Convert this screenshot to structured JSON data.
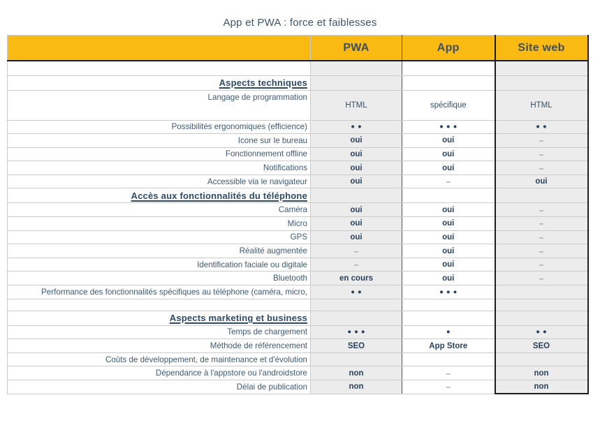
{
  "title": "App et PWA : force et faiblesses",
  "colors": {
    "accent_yellow": "#FBBA12",
    "header_text": "#3F4F5B",
    "label_text": "#3E5A73",
    "value_text": "#29425A",
    "dash_text": "#9CA1A8",
    "grid_light": "#CBCBCB",
    "grid_dark": "#4F4F4F",
    "emphasis_border": "#1D1D1D",
    "cell_gray": "#ECECEC"
  },
  "table": {
    "columns": [
      "PWA",
      "App",
      "Site web"
    ],
    "rows": [
      {
        "kind": "empty",
        "label": "",
        "cells": [
          "",
          "",
          ""
        ]
      },
      {
        "kind": "section",
        "label": "Aspects techniques",
        "cells": [
          "",
          "",
          ""
        ]
      },
      {
        "kind": "tall",
        "label": "Langage de programmation",
        "cells": [
          "HTML",
          "spécifique",
          "HTML"
        ]
      },
      {
        "kind": "data",
        "label": "Possibilités ergonomiques (efficience)",
        "cells": [
          "●●",
          "●●●",
          "●●"
        ]
      },
      {
        "kind": "data",
        "label": "Icone sur le bureau",
        "cells": [
          "oui",
          "oui",
          "–"
        ]
      },
      {
        "kind": "data",
        "label": "Fonctionnement offline",
        "cells": [
          "oui",
          "oui",
          "–"
        ]
      },
      {
        "kind": "data",
        "label": "Notifications",
        "cells": [
          "oui",
          "oui",
          "–"
        ]
      },
      {
        "kind": "data",
        "label": "Accessible via le navigateur",
        "cells": [
          "oui",
          "–",
          "oui"
        ]
      },
      {
        "kind": "section",
        "label": "Accès aux fonctionnalités du téléphone",
        "cells": [
          "",
          "",
          ""
        ]
      },
      {
        "kind": "data",
        "label": "Caméra",
        "cells": [
          "oui",
          "oui",
          "–"
        ]
      },
      {
        "kind": "data",
        "label": "Micro",
        "cells": [
          "oui",
          "oui",
          "–"
        ]
      },
      {
        "kind": "data",
        "label": "GPS",
        "cells": [
          "oui",
          "oui",
          "–"
        ]
      },
      {
        "kind": "data",
        "label": "Réalité augmentée",
        "cells": [
          "–",
          "oui",
          "–"
        ]
      },
      {
        "kind": "data",
        "label": "Identification faciale ou digitale",
        "cells": [
          "–",
          "oui",
          "–"
        ]
      },
      {
        "kind": "data",
        "label": "Bluetooth",
        "cells": [
          "en cours",
          "oui",
          "–"
        ]
      },
      {
        "kind": "data",
        "label": "Performance des fonctionnalités spécifiques au téléphone (caméra, micro,",
        "cells": [
          "●●",
          "●●●",
          ""
        ]
      },
      {
        "kind": "gap",
        "label": "",
        "cells": [
          "",
          "",
          ""
        ]
      },
      {
        "kind": "section",
        "label": "Aspects marketing et business",
        "cells": [
          "",
          "",
          ""
        ]
      },
      {
        "kind": "data",
        "label": "Temps de chargement",
        "cells": [
          "●●●",
          "●",
          "●●"
        ]
      },
      {
        "kind": "data",
        "label": "Méthode de référencement",
        "cells": [
          "SEO",
          "App Store",
          "SEO"
        ]
      },
      {
        "kind": "data",
        "label": "Coûts de développement, de maintenance et d'évolution",
        "cells": [
          "",
          "",
          ""
        ]
      },
      {
        "kind": "data",
        "label": "Dépendance à l'appstore ou l'androidstore",
        "cells": [
          "non",
          "–",
          "non"
        ]
      },
      {
        "kind": "data",
        "label": "Délai de publication",
        "cells": [
          "non",
          "–",
          "non"
        ]
      }
    ]
  }
}
